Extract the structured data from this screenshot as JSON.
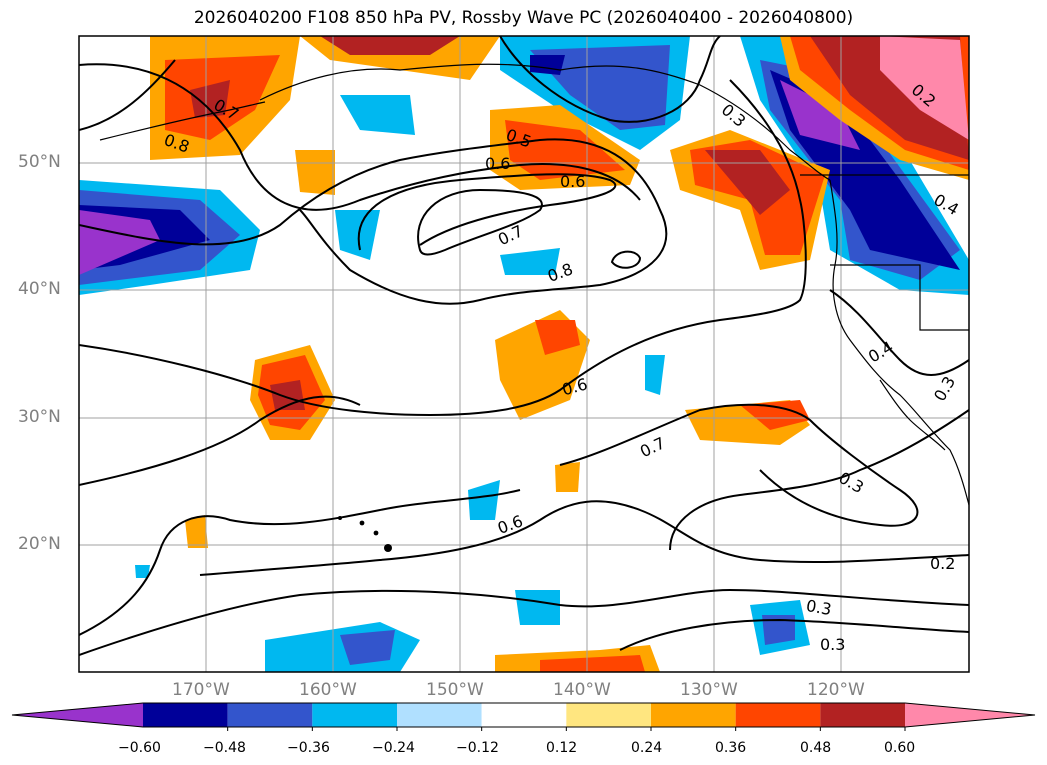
{
  "title": "2026040200 F108 850 hPa PV, Rossby Wave PC (2026040400 - 2026040800)",
  "map": {
    "projection": "PlateCarree",
    "lon_range": [
      -180,
      -110
    ],
    "lat_range": [
      10,
      60
    ],
    "lat_labels": [
      "50°N",
      "40°N",
      "30°N",
      "20°N"
    ],
    "lon_labels": [
      "170°W",
      "160°W",
      "150°W",
      "140°W",
      "130°W",
      "120°W"
    ],
    "contour_labels": [
      "0.7",
      "0.8",
      "0.6",
      "0.5",
      "0.6",
      "0.7",
      "0.8",
      "0.6",
      "0.7",
      "0.6",
      "0.4",
      "0.3",
      "0.3",
      "0.2",
      "0.3",
      "0.3",
      "0.3",
      "0.4",
      "0.2"
    ]
  },
  "colorbar": {
    "tick_labels": [
      "−0.60",
      "−0.48",
      "−0.36",
      "−0.24",
      "−0.12",
      "0.12",
      "0.24",
      "0.36",
      "0.48",
      "0.60"
    ],
    "colors": [
      "#9933cc",
      "#000099",
      "#3355cc",
      "#00b8f0",
      "#b0e0ff",
      "#ffffff",
      "#ffe680",
      "#ffa500",
      "#ff4500",
      "#b22222",
      "#ff88aa"
    ]
  }
}
